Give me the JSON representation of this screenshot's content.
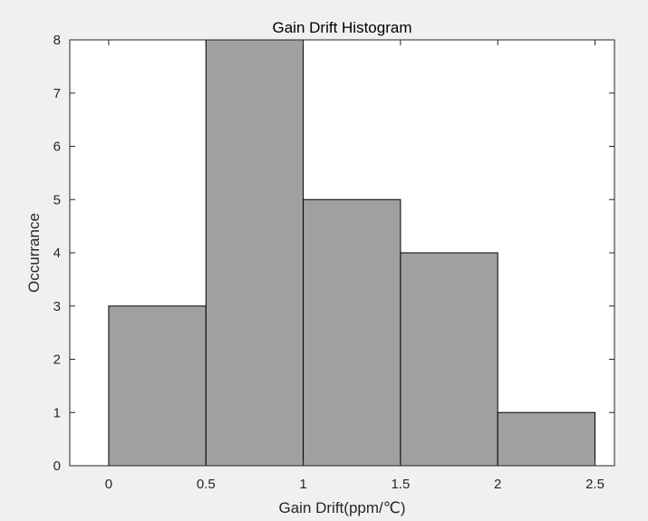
{
  "chart_data": {
    "type": "bar",
    "title": "Gain Drift Histogram",
    "xlabel": "Gain Drift(ppm/℃)",
    "ylabel": "Occurrance",
    "bin_edges": [
      0,
      0.5,
      1,
      1.5,
      2,
      2.5
    ],
    "values": [
      3,
      8,
      5,
      4,
      1
    ],
    "xlim": [
      -0.2,
      2.6
    ],
    "ylim": [
      0,
      8
    ],
    "xticks": [
      "0",
      "0.5",
      "1",
      "1.5",
      "2",
      "2.5"
    ],
    "yticks": [
      "0",
      "1",
      "2",
      "3",
      "4",
      "5",
      "6",
      "7",
      "8"
    ],
    "grid": false,
    "colors": {
      "bar_fill": "#a0a0a0",
      "bar_edge": "#000000",
      "axes_background": "#ffffff",
      "figure_background": "#f0f0f0",
      "axis_line": "#262626"
    }
  }
}
